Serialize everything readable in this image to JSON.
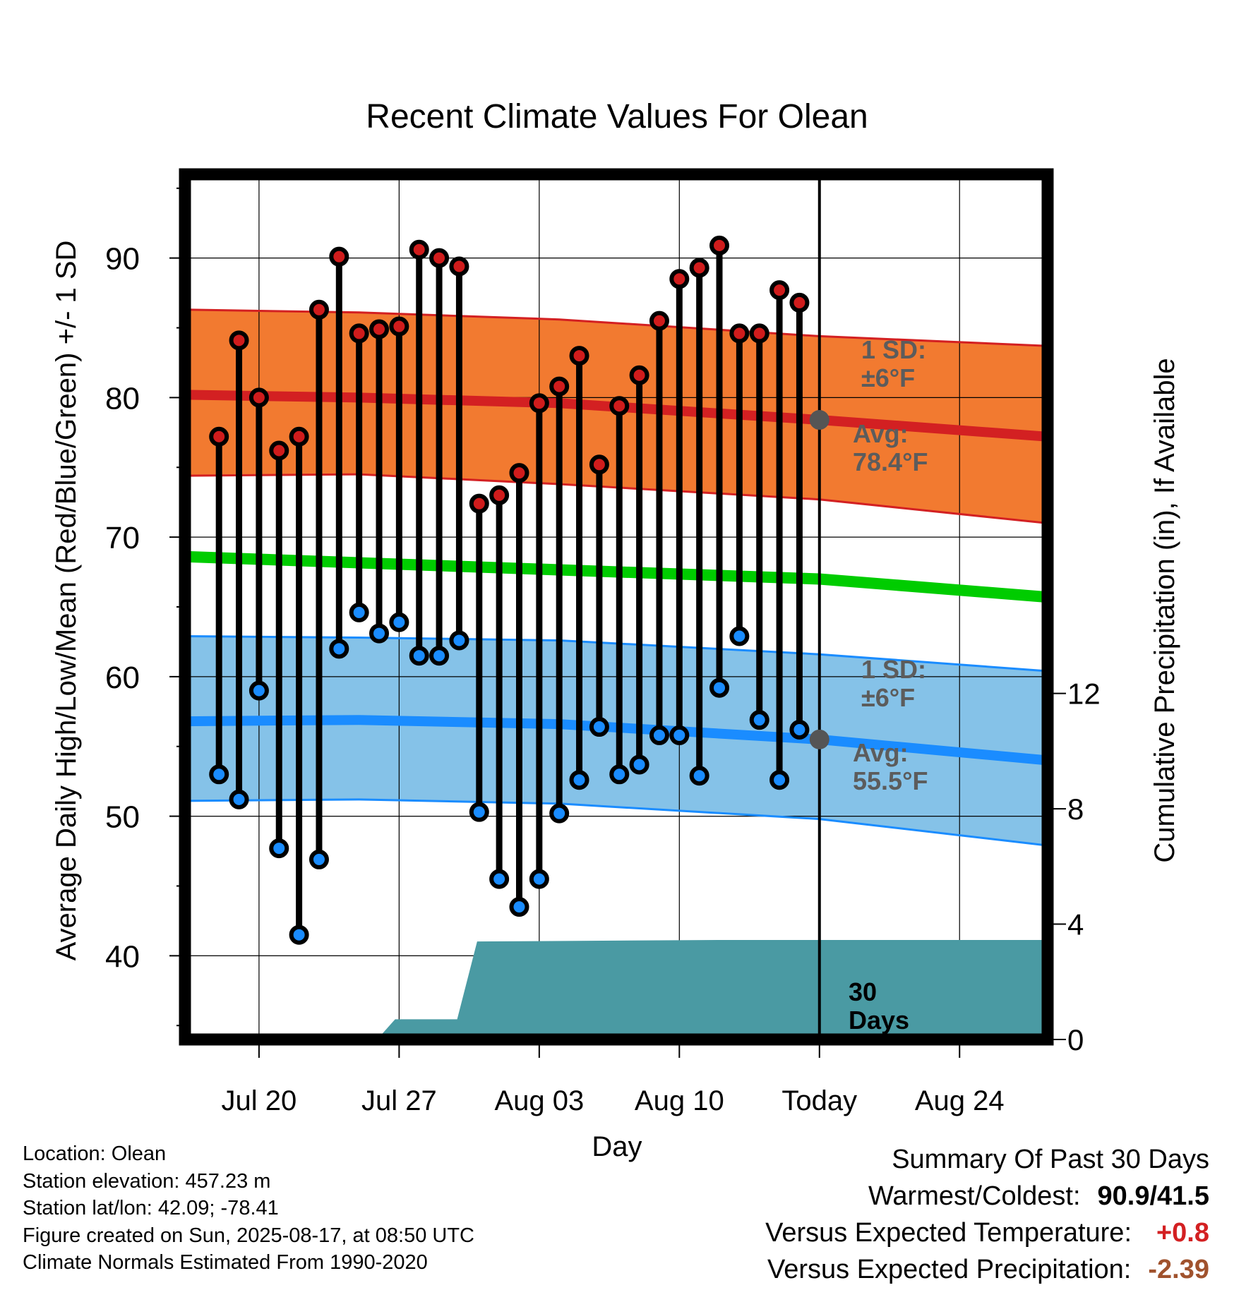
{
  "chart_data": {
    "type": "line",
    "title": "Recent Climate Values For Olean",
    "xlabel": "Day",
    "ylabel": "Average Daily High/Low/Mean (Red/Blue/Green) +/- 1 SD",
    "y2label": "Cumulative Precipitation (in), If Available",
    "ylim": [
      34,
      96
    ],
    "y2lim": [
      0,
      30
    ],
    "xlim": [
      -28.7,
      14.4
    ],
    "x_ticks": [
      {
        "day": -25,
        "label": "Jul 20"
      },
      {
        "day": -18,
        "label": "Jul 27"
      },
      {
        "day": -11,
        "label": "Aug 03"
      },
      {
        "day": -4,
        "label": "Aug 10"
      },
      {
        "day": 3,
        "label": "Today"
      },
      {
        "day": 10,
        "label": "Aug 24"
      }
    ],
    "y_ticks": [
      40,
      50,
      60,
      70,
      80,
      90
    ],
    "y2_ticks": [
      0,
      4,
      8,
      12
    ],
    "series": [
      {
        "name": "High",
        "color": "#d01c1c",
        "x": [
          -27,
          -26,
          -25,
          -24,
          -23,
          -22,
          -21,
          -20,
          -19,
          -18,
          -17,
          -16,
          -15,
          -14,
          -13,
          -12,
          -11,
          -10,
          -9,
          -8,
          -7,
          -6,
          -5,
          -4,
          -3,
          -2,
          -1,
          0,
          1,
          2
        ],
        "values": [
          77.2,
          84.1,
          80.0,
          76.2,
          77.2,
          86.3,
          90.1,
          84.6,
          84.9,
          85.1,
          90.6,
          90.0,
          89.4,
          72.4,
          73.0,
          74.6,
          79.6,
          80.8,
          83.0,
          75.2,
          79.4,
          81.6,
          85.5,
          88.5,
          89.3,
          90.9,
          84.6,
          84.6,
          87.7,
          86.8
        ]
      },
      {
        "name": "Low",
        "color": "#1a8cff",
        "x": [
          -27,
          -26,
          -25,
          -24,
          -23,
          -22,
          -21,
          -20,
          -19,
          -18,
          -17,
          -16,
          -15,
          -14,
          -13,
          -12,
          -11,
          -10,
          -9,
          -8,
          -7,
          -6,
          -5,
          -4,
          -3,
          -2,
          -1,
          0,
          1,
          2
        ],
        "values": [
          53.0,
          51.2,
          59.0,
          47.7,
          41.5,
          46.9,
          62.0,
          64.6,
          63.1,
          63.9,
          61.5,
          61.5,
          62.6,
          50.3,
          45.5,
          43.5,
          45.5,
          50.2,
          52.6,
          56.4,
          53.0,
          53.7,
          55.8,
          55.8,
          52.9,
          59.2,
          62.9,
          56.9,
          52.6,
          56.2
        ]
      },
      {
        "name": "Mean",
        "color": "#00cc00",
        "x": [
          -28.7,
          3,
          14.4
        ],
        "values": [
          68.6,
          67.0,
          65.7
        ]
      }
    ],
    "normals": {
      "high_avg": {
        "x": [
          -28.7,
          -20,
          -10,
          3,
          14.4
        ],
        "values": [
          80.2,
          80.0,
          79.6,
          78.4,
          77.2
        ]
      },
      "high_upper": {
        "x": [
          -28.7,
          -20,
          -10,
          3,
          14.4
        ],
        "values": [
          86.3,
          86.1,
          85.6,
          84.4,
          83.7
        ]
      },
      "high_lower": {
        "x": [
          -28.7,
          -20,
          -10,
          3,
          14.4
        ],
        "values": [
          74.4,
          74.5,
          73.8,
          72.7,
          71.0
        ]
      },
      "low_avg": {
        "x": [
          -28.7,
          -20,
          -10,
          3,
          14.4
        ],
        "values": [
          56.8,
          56.9,
          56.6,
          55.5,
          54.0
        ]
      },
      "low_upper": {
        "x": [
          -28.7,
          -20,
          -10,
          3,
          14.4
        ],
        "values": [
          62.9,
          62.8,
          62.6,
          61.6,
          60.4
        ]
      },
      "low_lower": {
        "x": [
          -28.7,
          -20,
          -10,
          3,
          14.4
        ],
        "values": [
          51.1,
          51.2,
          50.9,
          49.8,
          47.9
        ]
      }
    },
    "precip": {
      "color": "#4a9aa3",
      "x": [
        -28.7,
        -19.1,
        -18.2,
        -15.1,
        -14.1,
        -2,
        14.4
      ],
      "values": [
        0,
        0,
        0.7,
        0.7,
        3.4,
        3.45,
        3.45
      ]
    },
    "today_markers": {
      "high_avg": 78.4,
      "low_avg": 55.5
    },
    "annotations": {
      "high_sd": [
        "1 SD:",
        "±6°F"
      ],
      "high_avg": [
        "Avg:",
        "78.4°F"
      ],
      "low_sd": [
        "1 SD:",
        "±6°F"
      ],
      "low_avg": [
        "Avg:",
        "55.5°F"
      ],
      "precip_period": [
        "30",
        "Days"
      ]
    },
    "colors": {
      "high_band": "#f27a30",
      "high_line": "#d32022",
      "high_band_edge": "#d32022",
      "low_band": "#85c2e8",
      "low_line": "#1a8cff",
      "low_band_edge": "#1a8cff",
      "mean_line": "#00cc00",
      "annotation_text": "#5c5c5c"
    }
  },
  "info": {
    "location": "Location: Olean",
    "elevation": "Station elevation: 457.23 m",
    "latlon": "Station lat/lon: 42.09; -78.41",
    "created": "Figure created on Sun, 2025-08-17, at 08:50 UTC",
    "normals": "Climate Normals Estimated From 1990-2020"
  },
  "summary": {
    "title": "Summary Of Past 30 Days",
    "warmest_label": "Warmest/Coldest:",
    "warmest_value": "90.9/41.5",
    "temp_label": "Versus Expected Temperature:",
    "temp_value": "+0.8",
    "temp_color": "#d32022",
    "precip_label": "Versus Expected Precipitation:",
    "precip_value": "-2.39",
    "precip_color": "#a0522d"
  }
}
